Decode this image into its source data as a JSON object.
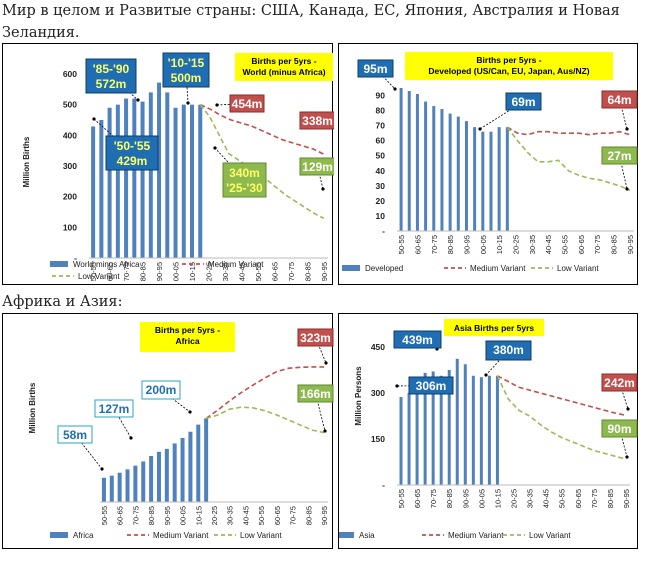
{
  "captions": {
    "top": "Мир в целом и Развитые страны: США, Канада, ЕС, Япония, Австралия и Новая Зеландия.",
    "bottom": "Африка и Азия:"
  },
  "chart_data": [
    {
      "type": "bar",
      "title": "Births per 5yrs -\nWorld (minus Africa)",
      "ylabel": "Million Births",
      "ylim": [
        0,
        600
      ],
      "yticks": [
        "-",
        "100",
        "200",
        "300",
        "400",
        "500",
        "600"
      ],
      "xtick_labels": [
        "50-55",
        "60-65",
        "70-75",
        "80-85",
        "90-95",
        "00-05",
        "10-15",
        "20-25",
        "30-35",
        "40-45",
        "50-55",
        "60-65",
        "70-75",
        "80-85",
        "90-95"
      ],
      "bars": [
        429,
        450,
        490,
        500,
        520,
        520,
        510,
        540,
        572,
        540,
        490,
        500,
        500,
        500
      ],
      "medium": [
        500,
        485,
        465,
        450,
        440,
        430,
        415,
        400,
        385,
        375,
        365,
        355,
        338
      ],
      "low": [
        500,
        460,
        400,
        340,
        320,
        300,
        280,
        255,
        230,
        205,
        185,
        165,
        145,
        129
      ],
      "legend": [
        "World minus Africa",
        "Medium Variant",
        "Low Variant"
      ],
      "annotations": [
        {
          "text": "'85-'90\n572m",
          "style": "blue-yellow"
        },
        {
          "text": "'10-'15\n500m",
          "style": "blue-yellow"
        },
        {
          "text": "'50-'55\n429m",
          "style": "blue-yellow"
        },
        {
          "text": "454m",
          "style": "red"
        },
        {
          "text": "338m",
          "style": "red"
        },
        {
          "text": "340m\n'25-'30",
          "style": "green-yellow"
        },
        {
          "text": "129m",
          "style": "green"
        }
      ]
    },
    {
      "type": "bar",
      "title": "Births per 5yrs -\nDeveloped (US/Can, EU, Japan, Aus/NZ)",
      "ylabel": "",
      "ylim": [
        0,
        95
      ],
      "yticks": [
        "-",
        "10",
        "20",
        "30",
        "40",
        "50",
        "60",
        "70",
        "80",
        "90"
      ],
      "xtick_labels": [
        "50-55",
        "60-65",
        "70-75",
        "80-85",
        "90-95",
        "00-05",
        "10-15",
        "20-25",
        "30-35",
        "40-45",
        "50-55",
        "60-65",
        "70-75",
        "80-85",
        "90-95"
      ],
      "bars": [
        95,
        93,
        91,
        86,
        83,
        81,
        78,
        76,
        73,
        69,
        66,
        66,
        69,
        69
      ],
      "medium": [
        69,
        65,
        64,
        66,
        66,
        65,
        65,
        65,
        64,
        65,
        65,
        66,
        64
      ],
      "low": [
        69,
        60,
        52,
        46,
        46,
        47,
        40,
        37,
        35,
        34,
        32,
        30,
        27
      ],
      "legend": [
        "Developed",
        "Medium Variant",
        "Low Variant"
      ],
      "annotations": [
        {
          "text": "95m",
          "style": "blue"
        },
        {
          "text": "69m",
          "style": "blue"
        },
        {
          "text": "64m",
          "style": "red"
        },
        {
          "text": "27m",
          "style": "green"
        }
      ]
    },
    {
      "type": "bar",
      "title": "Births per 5yrs -\nAfrica",
      "ylabel": "Million Births",
      "ylim": [
        0,
        330
      ],
      "yticks": [],
      "xtick_labels": [
        "50-55",
        "60-65",
        "70-75",
        "80-85",
        "90-95",
        "00-05",
        "10-15",
        "20-25",
        "30-35",
        "40-45",
        "50-55",
        "60-65",
        "70-75",
        "80-85",
        "90-95"
      ],
      "bars": [
        58,
        63,
        70,
        78,
        87,
        97,
        110,
        120,
        127,
        140,
        153,
        168,
        185,
        200
      ],
      "medium": [
        200,
        220,
        242,
        262,
        280,
        297,
        312,
        320,
        322,
        323,
        323
      ],
      "low": [
        200,
        208,
        222,
        227,
        225,
        218,
        208,
        196,
        184,
        172,
        166
      ],
      "legend": [
        "Africa",
        "Medium Variant",
        "Low Variant"
      ],
      "annotations": [
        {
          "text": "323m",
          "style": "red"
        },
        {
          "text": "166m",
          "style": "green"
        },
        {
          "text": "200m",
          "style": "white-blue"
        },
        {
          "text": "127m",
          "style": "white-blue"
        },
        {
          "text": "58m",
          "style": "white-blue"
        }
      ]
    },
    {
      "type": "bar",
      "title": "Asia Births per 5yrs",
      "ylabel": "Million Persons",
      "ylim": [
        0,
        480
      ],
      "yticks": [
        "-",
        "150",
        "300",
        "450"
      ],
      "xtick_labels": [
        "50-55",
        "60-65",
        "70-75",
        "80-85",
        "90-95",
        "00-05",
        "10-15",
        "20-25",
        "30-35",
        "40-45",
        "50-55",
        "60-65",
        "70-75",
        "80-85",
        "90-95"
      ],
      "bars": [
        306,
        320,
        360,
        390,
        395,
        380,
        400,
        439,
        420,
        380,
        375,
        380,
        380
      ],
      "medium": [
        380,
        360,
        340,
        330,
        320,
        310,
        300,
        290,
        280,
        270,
        260,
        250,
        242
      ],
      "low": [
        380,
        300,
        260,
        240,
        210,
        185,
        165,
        150,
        135,
        120,
        110,
        100,
        90
      ],
      "legend": [
        "Asia",
        "Medium Variant",
        "Low Variant"
      ],
      "annotations": [
        {
          "text": "439m",
          "style": "blue"
        },
        {
          "text": "380m",
          "style": "blue"
        },
        {
          "text": "306m",
          "style": "blue"
        },
        {
          "text": "242m",
          "style": "red"
        },
        {
          "text": "90m",
          "style": "green"
        }
      ]
    }
  ]
}
